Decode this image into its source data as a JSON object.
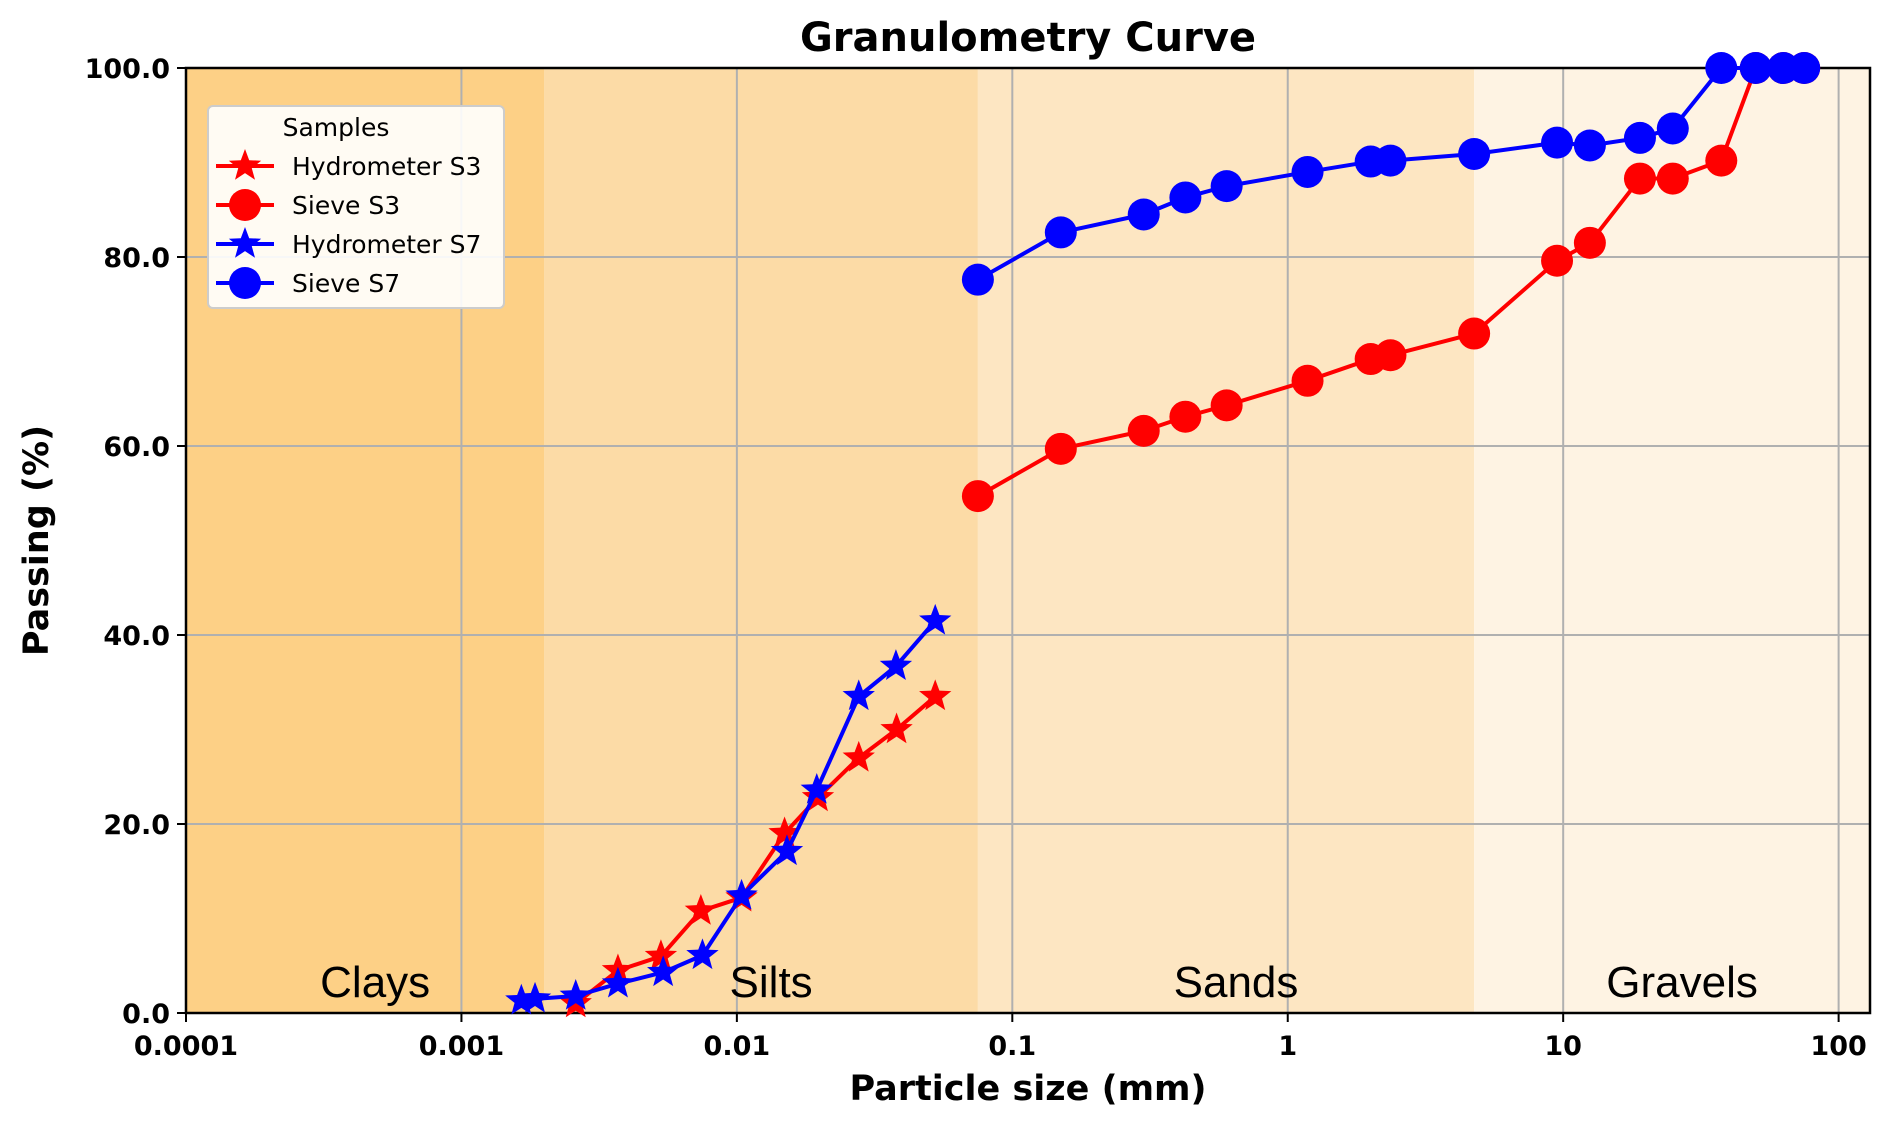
{
  "chart_data": {
    "type": "line",
    "title": "Granulometry Curve",
    "xlabel": "Particle size (mm)",
    "ylabel": "Passing (%)",
    "x_scale": "log",
    "xlim": [
      0.0001,
      130
    ],
    "ylim": [
      0,
      100
    ],
    "x_ticks": [
      0.0001,
      0.001,
      0.01,
      0.1,
      1,
      10,
      100
    ],
    "x_tick_labels": [
      "0.0001",
      "0.001",
      "0.01",
      "0.1",
      "1",
      "10",
      "100"
    ],
    "y_ticks": [
      0,
      20,
      40,
      60,
      80,
      100
    ],
    "y_tick_labels": [
      "0.0",
      "20.0",
      "40.0",
      "60.0",
      "80.0",
      "100.0"
    ],
    "grid": true,
    "legend": {
      "title": "Samples",
      "position": "top-left"
    },
    "zones": [
      {
        "label": "Clays",
        "from": 0.0001,
        "to": 0.002,
        "color": "#fdd086"
      },
      {
        "label": "Silts",
        "from": 0.002,
        "to": 0.075,
        "color": "#fcdba6"
      },
      {
        "label": "Sands",
        "from": 0.075,
        "to": 4.75,
        "color": "#fde6c2"
      },
      {
        "label": "Gravels",
        "from": 4.75,
        "to": 130,
        "color": "#fef3e3"
      }
    ],
    "series": [
      {
        "name": "Hydrometer S3",
        "color": "#ff0000",
        "marker": "star",
        "x": [
          0.0026,
          0.0037,
          0.0053,
          0.0074,
          0.0104,
          0.0149,
          0.0197,
          0.0277,
          0.038,
          0.0525
        ],
        "y": [
          1.0,
          4.5,
          6.0,
          10.8,
          12.2,
          19.0,
          22.8,
          27.0,
          30.0,
          33.5
        ]
      },
      {
        "name": "Sieve S3",
        "color": "#ff0000",
        "marker": "circle",
        "x": [
          0.075,
          0.15,
          0.3,
          0.425,
          0.6,
          1.18,
          2.0,
          2.36,
          4.75,
          9.5,
          12.5,
          19.0,
          25.0,
          37.5,
          50.0,
          63.0,
          75.0
        ],
        "y": [
          54.7,
          59.7,
          61.6,
          63.1,
          64.3,
          66.9,
          69.2,
          69.6,
          71.9,
          79.6,
          81.5,
          88.3,
          88.3,
          90.2,
          100.0,
          100.0,
          100.0
        ]
      },
      {
        "name": "Hydrometer S7",
        "color": "#0000ff",
        "marker": "star",
        "x": [
          0.00165,
          0.00185,
          0.0026,
          0.0037,
          0.0054,
          0.0075,
          0.0104,
          0.0152,
          0.0195,
          0.0277,
          0.0378,
          0.0525
        ],
        "y": [
          1.3,
          1.5,
          1.8,
          3.1,
          4.3,
          6.1,
          12.4,
          17.1,
          23.6,
          33.5,
          36.7,
          41.5
        ]
      },
      {
        "name": "Sieve S7",
        "color": "#0000ff",
        "marker": "circle",
        "x": [
          0.075,
          0.15,
          0.3,
          0.425,
          0.6,
          1.18,
          2.0,
          2.36,
          4.75,
          9.5,
          12.5,
          19.0,
          25.0,
          37.5,
          50.0,
          63.0,
          75.0
        ],
        "y": [
          77.6,
          82.6,
          84.5,
          86.3,
          87.5,
          89.0,
          90.1,
          90.2,
          90.9,
          92.1,
          91.8,
          92.6,
          93.6,
          100.0,
          100.0,
          100.0,
          100.0
        ]
      }
    ]
  }
}
